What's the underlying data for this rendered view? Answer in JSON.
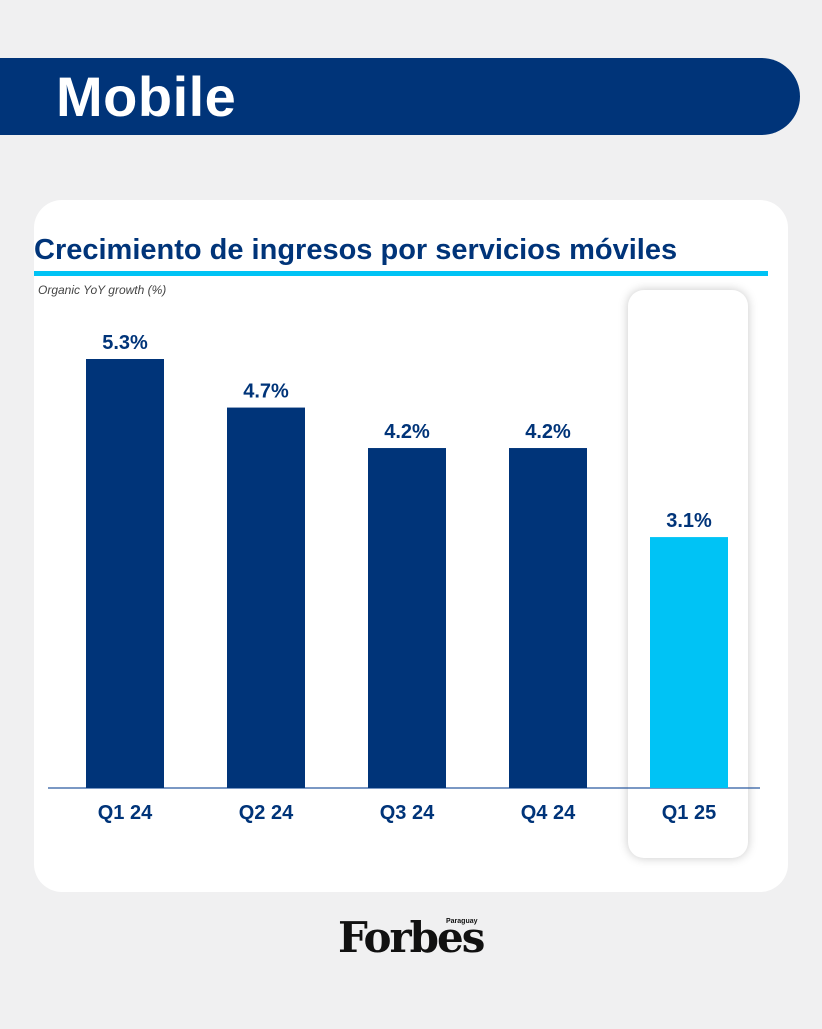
{
  "header": {
    "title": "Mobile"
  },
  "colors": {
    "primary_bar": "#003479",
    "highlight_bar": "#00c3f5",
    "header_band": "#003479",
    "title_text": "#003479",
    "accent_rule": "#00c3f5"
  },
  "chart_data": {
    "type": "bar",
    "title": "Crecimiento de ingresos por servicios móviles",
    "subtitle": "Organic YoY growth (%)",
    "categories": [
      "Q1 24",
      "Q2 24",
      "Q3 24",
      "Q4 24",
      "Q1 25"
    ],
    "values": [
      5.3,
      4.7,
      4.2,
      4.2,
      3.1
    ],
    "value_labels": [
      "5.3%",
      "4.7%",
      "4.2%",
      "4.2%",
      "3.1%"
    ],
    "highlighted_category": "Q1 25",
    "ylim": [
      0,
      5.3
    ],
    "grid": false,
    "legend": "none"
  },
  "footer": {
    "logo_text": "Forbes",
    "logo_subtext": "Paraguay"
  }
}
